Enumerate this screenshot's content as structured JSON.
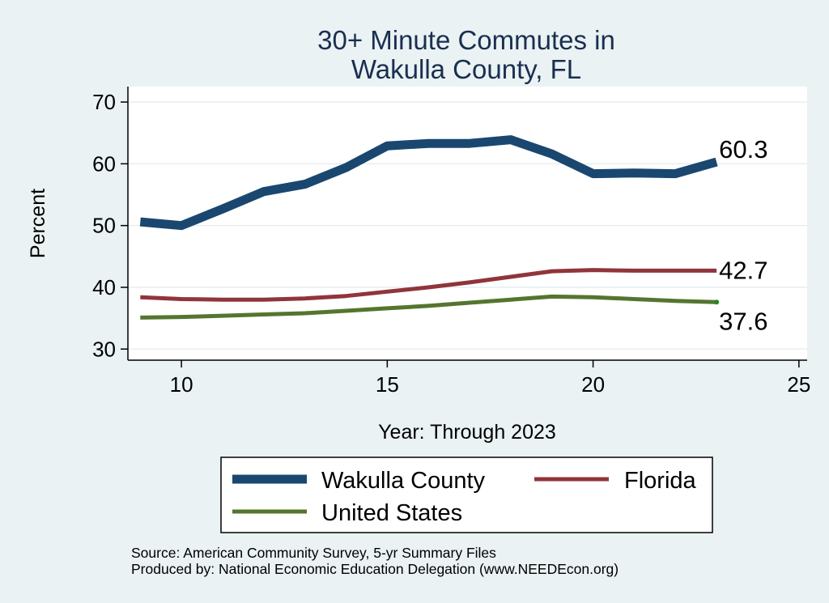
{
  "chart_data": {
    "type": "line",
    "title": [
      "30+ Minute Commutes in",
      "Wakulla County, FL"
    ],
    "xlabel": "Year: Through 2023",
    "ylabel": "Percent",
    "xlim": [
      8.7,
      25.2
    ],
    "ylim": [
      28.2,
      72.5
    ],
    "xticks": [
      10,
      15,
      20,
      25
    ],
    "yticks": [
      30,
      40,
      50,
      60,
      70
    ],
    "grid": true,
    "x": [
      9,
      10,
      11,
      12,
      13,
      14,
      15,
      16,
      17,
      18,
      19,
      20,
      21,
      22,
      23
    ],
    "series": [
      {
        "name": "Wakulla County",
        "color": "#1a476f",
        "values": [
          50.6,
          50.0,
          52.7,
          55.5,
          56.7,
          59.4,
          62.9,
          63.3,
          63.3,
          63.9,
          61.6,
          58.4,
          58.5,
          58.4,
          60.3
        ],
        "end_label": "60.3"
      },
      {
        "name": "Florida",
        "color": "#90353b",
        "values": [
          38.4,
          38.1,
          38.0,
          38.0,
          38.2,
          38.6,
          39.3,
          40.0,
          40.8,
          41.7,
          42.6,
          42.8,
          42.7,
          42.7,
          42.7
        ],
        "end_label": "42.7"
      },
      {
        "name": "United States",
        "color": "#55752f",
        "values": [
          35.1,
          35.2,
          35.4,
          35.6,
          35.8,
          36.2,
          36.6,
          37.0,
          37.5,
          38.0,
          38.5,
          38.4,
          38.1,
          37.8,
          37.6
        ],
        "end_label": "37.6"
      }
    ],
    "legend": {
      "position": "bottom",
      "entries": [
        "Wakulla County",
        "Florida",
        "United States"
      ]
    }
  },
  "source": {
    "line1": "Source: American Community Survey, 5-yr Summary Files",
    "line2": "Produced by: National Economic Education Delegation (www.NEEDEcon.org)"
  }
}
